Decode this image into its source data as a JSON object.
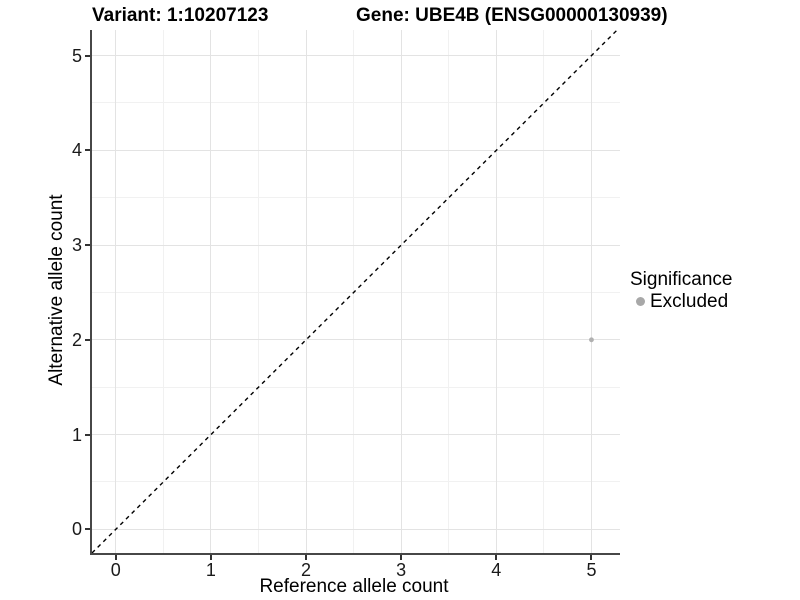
{
  "header": {
    "variant_title": "Variant: 1:10207123",
    "gene_title": "Gene: UBE4B (ENSG00000130939)"
  },
  "chart_data": {
    "type": "scatter",
    "xlabel": "Reference allele count",
    "ylabel": "Alternative allele count",
    "x_ticks": [
      0,
      1,
      2,
      3,
      4,
      5
    ],
    "y_ticks": [
      0,
      1,
      2,
      3,
      4,
      5
    ],
    "x_minor_ticks": [
      0.5,
      1.5,
      2.5,
      3.5,
      4.5
    ],
    "y_minor_ticks": [
      0.5,
      1.5,
      2.5,
      3.5,
      4.5
    ],
    "xlim": [
      -0.25,
      5.3
    ],
    "ylim": [
      -0.25,
      5.27
    ],
    "grid": true,
    "points": [
      {
        "x": 5,
        "y": 2,
        "significance": "Excluded"
      }
    ],
    "reference_line": {
      "slope": 1,
      "intercept": 0,
      "style": "dashed",
      "color": "#000000"
    },
    "legend": {
      "position": "right",
      "title": "Significance",
      "entries": [
        {
          "label": "Excluded",
          "color": "#a8a8a8"
        }
      ]
    },
    "colors": {
      "point": "#b0b0b0",
      "grid_major": "#e3e3e3",
      "grid_minor": "#f1f1f1",
      "axis_line": "#474747",
      "tick": "#333333",
      "text": "#000000"
    }
  }
}
